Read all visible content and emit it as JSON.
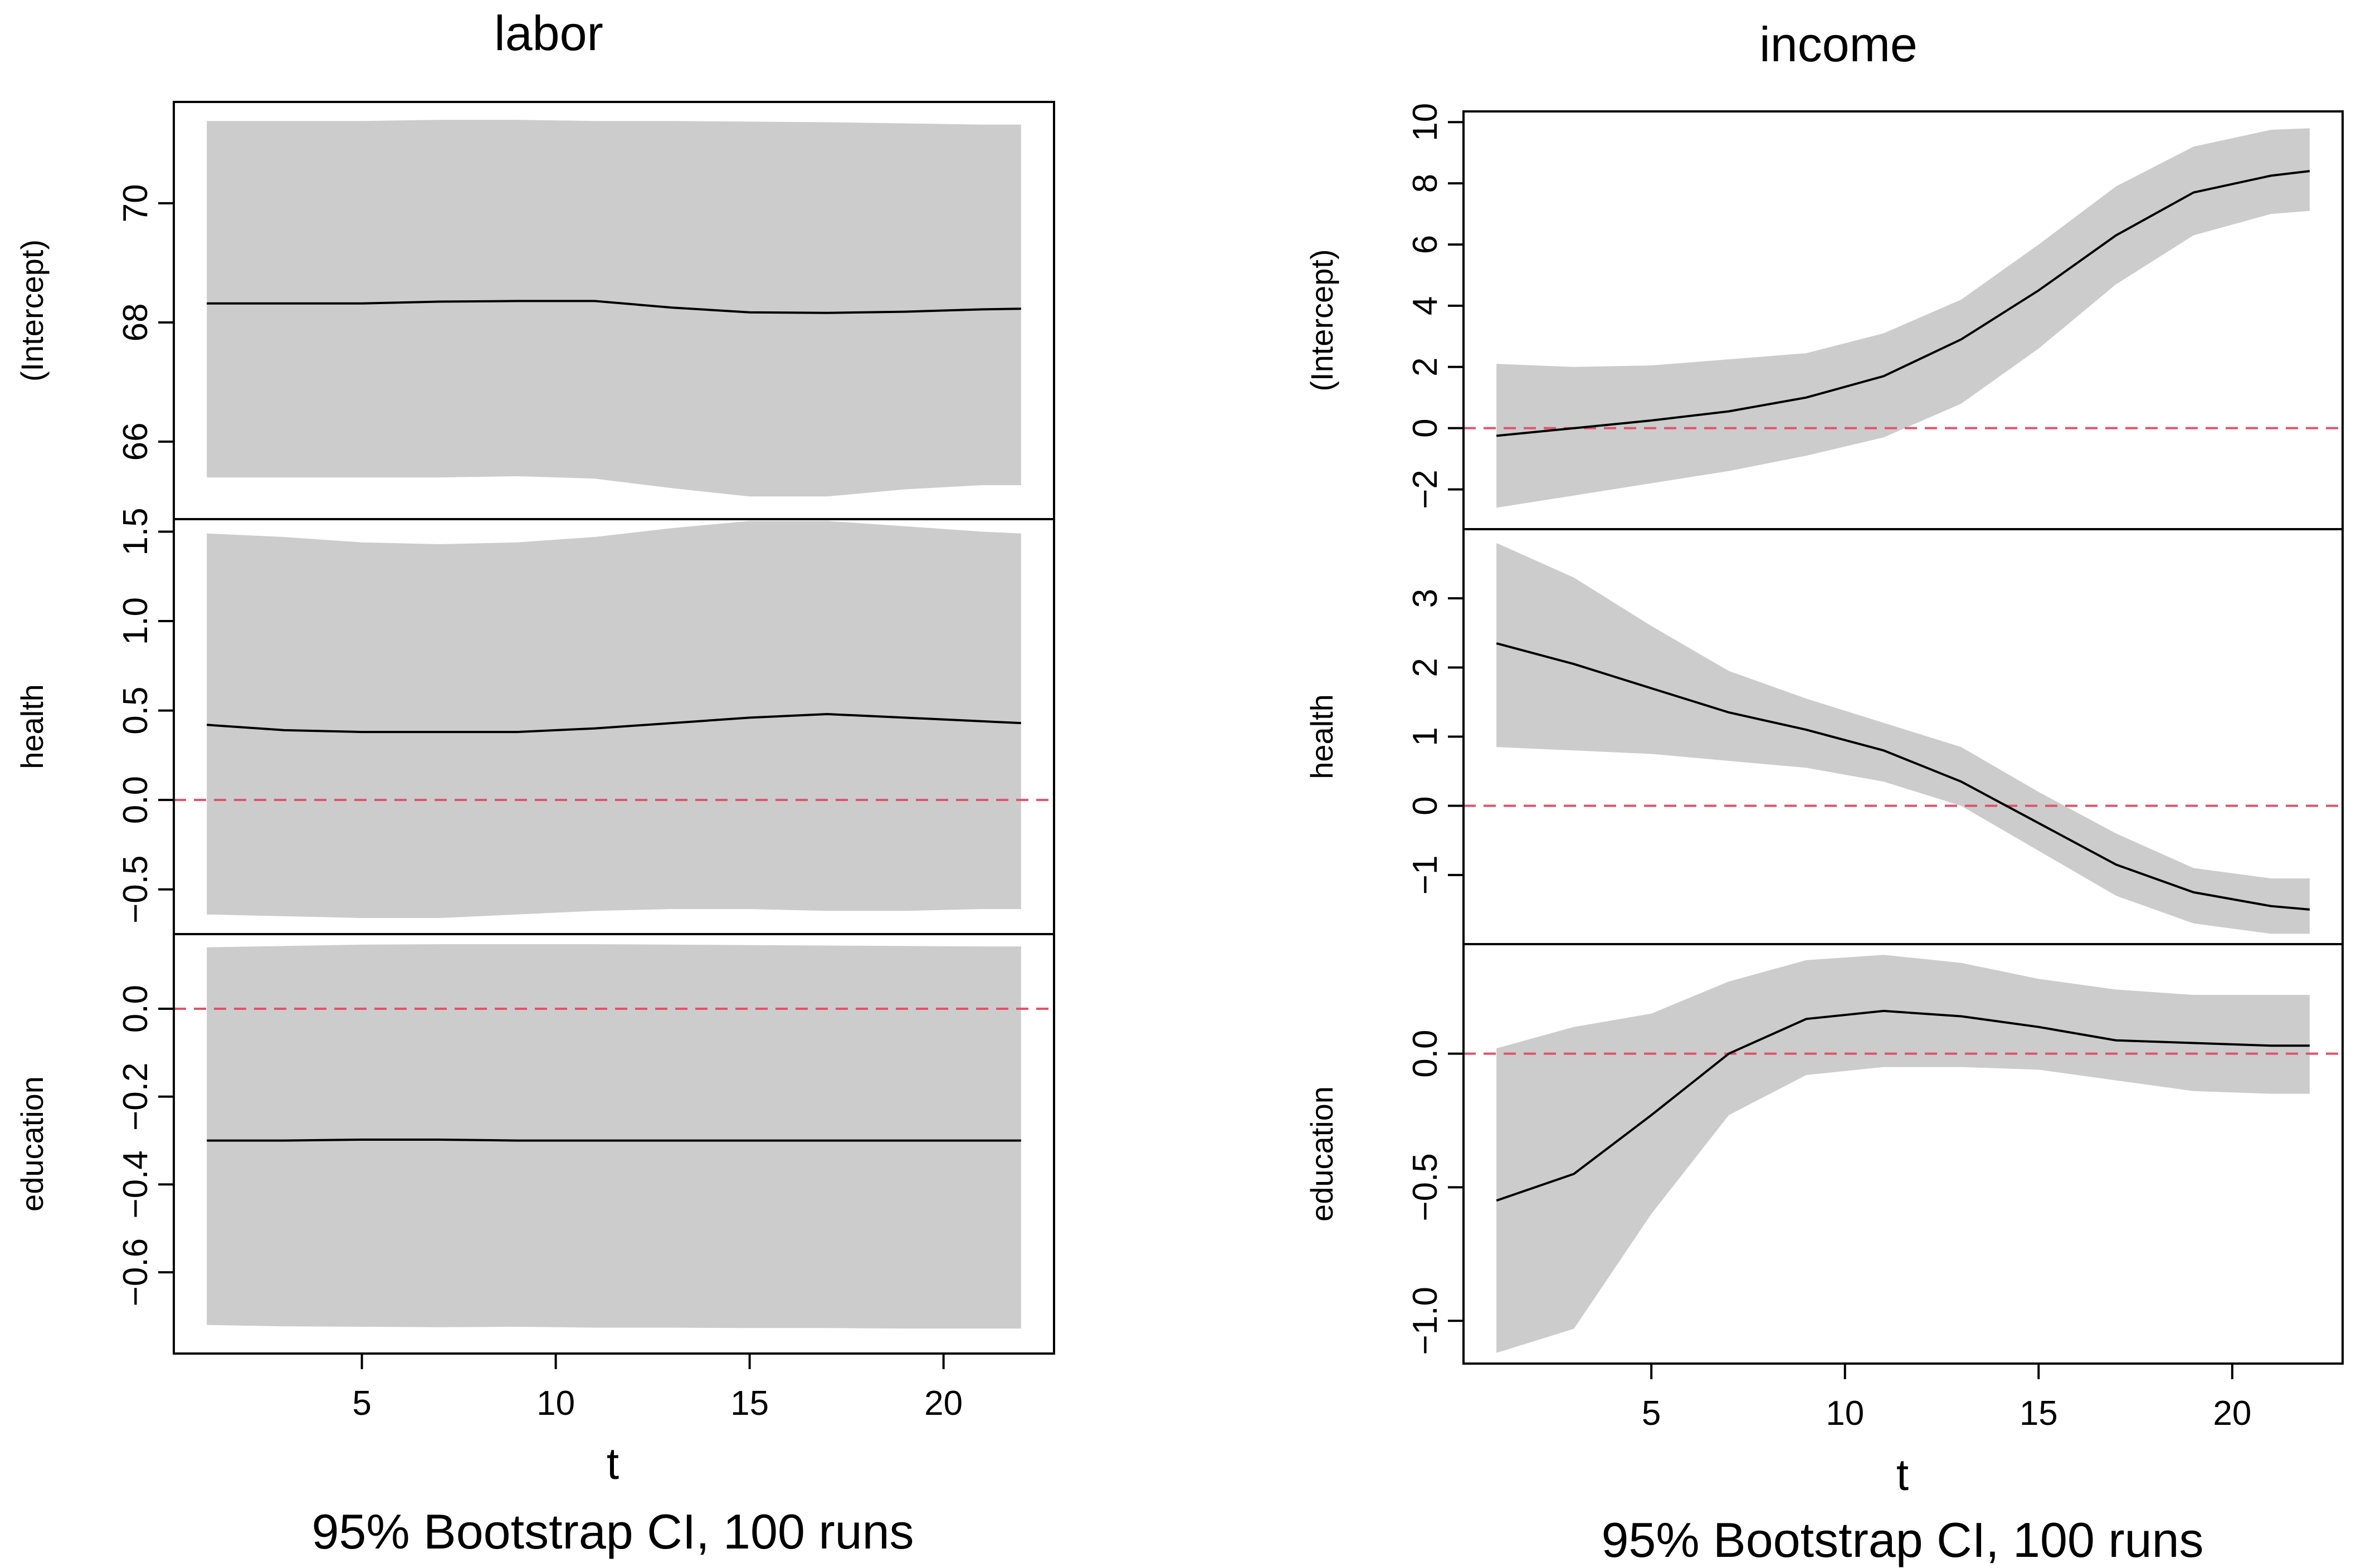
{
  "style": {
    "band_color": "#cccccc",
    "line_color": "#000000",
    "zero_line_color": "#df536b",
    "axis_color": "#000000"
  },
  "chart_data": [
    {
      "type": "line",
      "title": "labor",
      "xlabel": "t",
      "caption": "95% Bootstrap CI, 100 runs",
      "xlim": [
        0.15,
        22.85
      ],
      "xticks": [
        5,
        10,
        15,
        20
      ],
      "x": [
        1,
        3,
        5,
        7,
        9,
        11,
        13,
        15,
        17,
        19,
        21,
        22
      ],
      "panels": [
        {
          "ylabel": "(Intercept)",
          "ylim": [
            64.7,
            71.7
          ],
          "yticks": [
            66,
            68,
            70
          ],
          "zero_line": false,
          "estimate": [
            68.32,
            68.32,
            68.32,
            68.35,
            68.36,
            68.36,
            68.25,
            68.17,
            68.16,
            68.18,
            68.22,
            68.23
          ],
          "lower": [
            65.4,
            65.4,
            65.4,
            65.4,
            65.42,
            65.38,
            65.22,
            65.08,
            65.08,
            65.2,
            65.27,
            65.27
          ],
          "upper": [
            71.38,
            71.38,
            71.38,
            71.4,
            71.4,
            71.38,
            71.38,
            71.37,
            71.36,
            71.34,
            71.32,
            71.32
          ]
        },
        {
          "ylabel": "health",
          "ylim": [
            -0.75,
            1.57
          ],
          "yticks": [
            -0.5,
            0.0,
            0.5,
            1.0,
            1.5
          ],
          "zero_line": true,
          "estimate": [
            0.42,
            0.39,
            0.38,
            0.38,
            0.38,
            0.4,
            0.43,
            0.46,
            0.48,
            0.46,
            0.44,
            0.43
          ],
          "lower": [
            -0.64,
            -0.65,
            -0.66,
            -0.66,
            -0.64,
            -0.62,
            -0.61,
            -0.61,
            -0.62,
            -0.62,
            -0.61,
            -0.61
          ],
          "upper": [
            1.49,
            1.47,
            1.44,
            1.43,
            1.44,
            1.47,
            1.52,
            1.56,
            1.56,
            1.53,
            1.5,
            1.49
          ]
        },
        {
          "ylabel": "education",
          "ylim": [
            -0.785,
            0.17
          ],
          "yticks": [
            -0.6,
            -0.4,
            -0.2,
            0.0
          ],
          "zero_line": true,
          "estimate": [
            -0.3,
            -0.3,
            -0.298,
            -0.298,
            -0.3,
            -0.3,
            -0.3,
            -0.3,
            -0.3,
            -0.3,
            -0.3,
            -0.3
          ],
          "lower": [
            -0.72,
            -0.723,
            -0.724,
            -0.725,
            -0.724,
            -0.726,
            -0.726,
            -0.727,
            -0.727,
            -0.728,
            -0.728,
            -0.728
          ],
          "upper": [
            0.14,
            0.143,
            0.146,
            0.147,
            0.147,
            0.147,
            0.146,
            0.145,
            0.144,
            0.143,
            0.142,
            0.142
          ]
        }
      ]
    },
    {
      "type": "line",
      "title": "income",
      "xlabel": "t",
      "caption": "95% Bootstrap CI, 100 runs",
      "xlim": [
        0.15,
        22.85
      ],
      "xticks": [
        5,
        10,
        15,
        20
      ],
      "x": [
        1,
        3,
        5,
        7,
        9,
        11,
        13,
        15,
        17,
        19,
        21,
        22
      ],
      "panels": [
        {
          "ylabel": "(Intercept)",
          "ylim": [
            -3.3,
            10.35
          ],
          "yticks": [
            -2,
            0,
            2,
            4,
            6,
            8,
            10
          ],
          "zero_line": true,
          "estimate": [
            -0.25,
            0.0,
            0.25,
            0.55,
            1.0,
            1.7,
            2.9,
            4.5,
            6.3,
            7.7,
            8.25,
            8.4
          ],
          "lower": [
            -2.6,
            -2.2,
            -1.8,
            -1.4,
            -0.9,
            -0.3,
            0.8,
            2.6,
            4.7,
            6.3,
            7.0,
            7.1
          ],
          "upper": [
            2.1,
            2.0,
            2.05,
            2.25,
            2.45,
            3.1,
            4.2,
            6.0,
            7.9,
            9.2,
            9.75,
            9.8
          ]
        },
        {
          "ylabel": "health",
          "ylim": [
            -2.0,
            4.0
          ],
          "yticks": [
            -1,
            0,
            1,
            2,
            3
          ],
          "zero_line": true,
          "estimate": [
            2.35,
            2.05,
            1.7,
            1.35,
            1.1,
            0.8,
            0.35,
            -0.25,
            -0.85,
            -1.25,
            -1.45,
            -1.5
          ],
          "lower": [
            0.85,
            0.8,
            0.75,
            0.65,
            0.55,
            0.35,
            0.0,
            -0.65,
            -1.3,
            -1.7,
            -1.85,
            -1.85
          ],
          "upper": [
            3.8,
            3.3,
            2.6,
            1.95,
            1.55,
            1.2,
            0.85,
            0.2,
            -0.4,
            -0.9,
            -1.05,
            -1.05
          ]
        },
        {
          "ylabel": "education",
          "ylim": [
            -1.16,
            0.41
          ],
          "yticks": [
            -1.0,
            -0.5,
            0.0
          ],
          "zero_line": true,
          "estimate": [
            -0.55,
            -0.45,
            -0.23,
            0.0,
            0.13,
            0.16,
            0.14,
            0.1,
            0.05,
            0.04,
            0.03,
            0.03
          ],
          "lower": [
            -1.12,
            -1.03,
            -0.6,
            -0.23,
            -0.08,
            -0.05,
            -0.05,
            -0.06,
            -0.1,
            -0.14,
            -0.15,
            -0.15
          ],
          "upper": [
            0.02,
            0.1,
            0.15,
            0.27,
            0.35,
            0.37,
            0.34,
            0.28,
            0.24,
            0.22,
            0.22,
            0.22
          ]
        }
      ]
    }
  ]
}
